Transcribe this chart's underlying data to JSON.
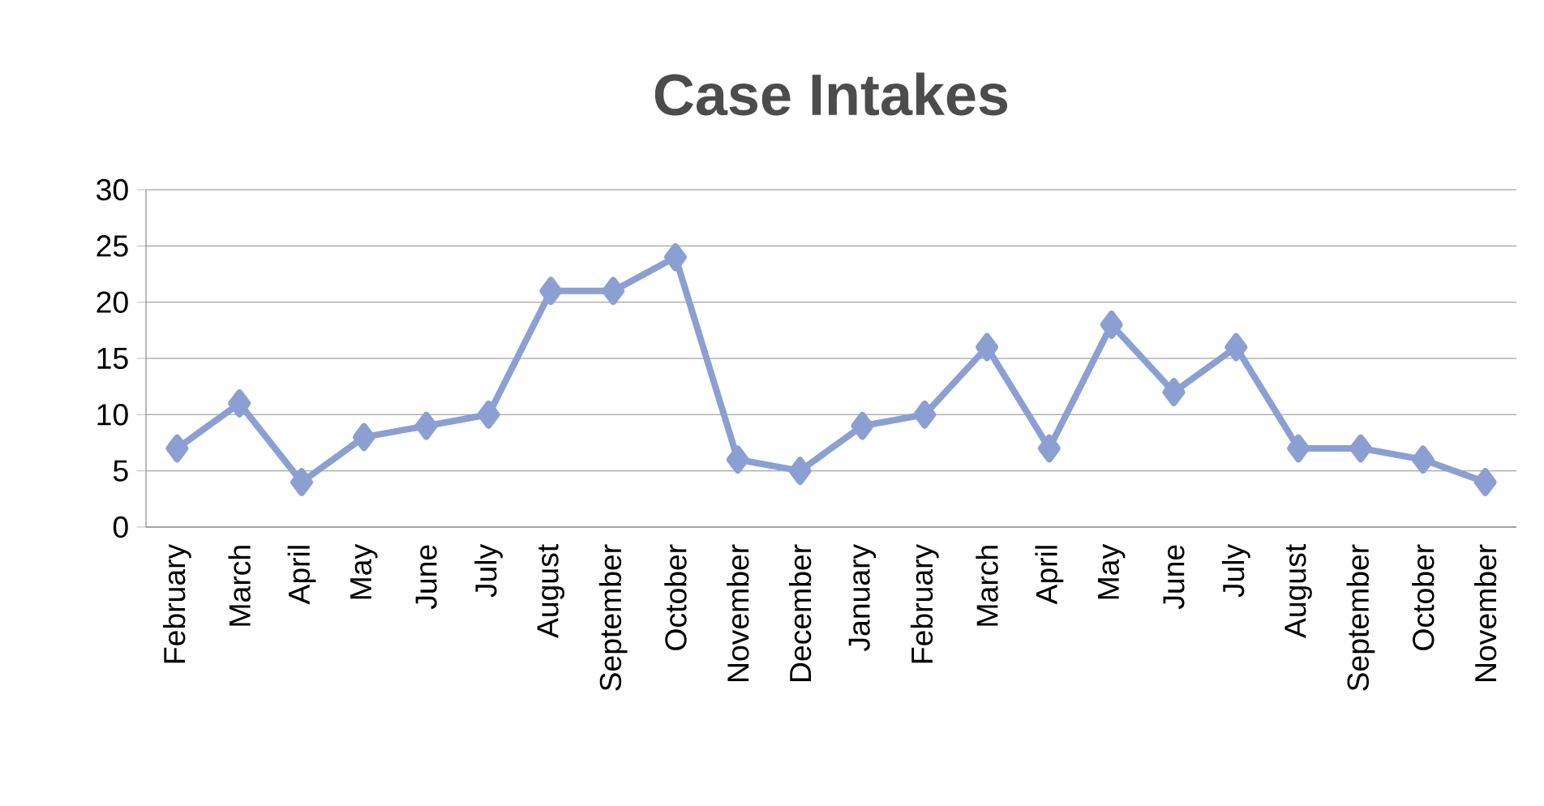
{
  "chart_data": {
    "type": "line",
    "title": "Case Intakes",
    "categories": [
      "February",
      "March",
      "April",
      "May",
      "June",
      "July",
      "August",
      "September",
      "October",
      "November",
      "December",
      "January",
      "February",
      "March",
      "April",
      "May",
      "June",
      "July",
      "August",
      "September",
      "October",
      "November"
    ],
    "series": [
      {
        "color": "#8c9fd2",
        "values": [
          7,
          11,
          4,
          8,
          9,
          10,
          21,
          21,
          24,
          6,
          5,
          9,
          10,
          16,
          7,
          18,
          12,
          16,
          7,
          7,
          6,
          4
        ]
      }
    ],
    "ylim": [
      0,
      30
    ],
    "yticks": [
      0,
      5,
      10,
      15,
      20,
      25,
      30
    ],
    "grid": "y",
    "marker": "diamond",
    "line_style": "solid"
  }
}
